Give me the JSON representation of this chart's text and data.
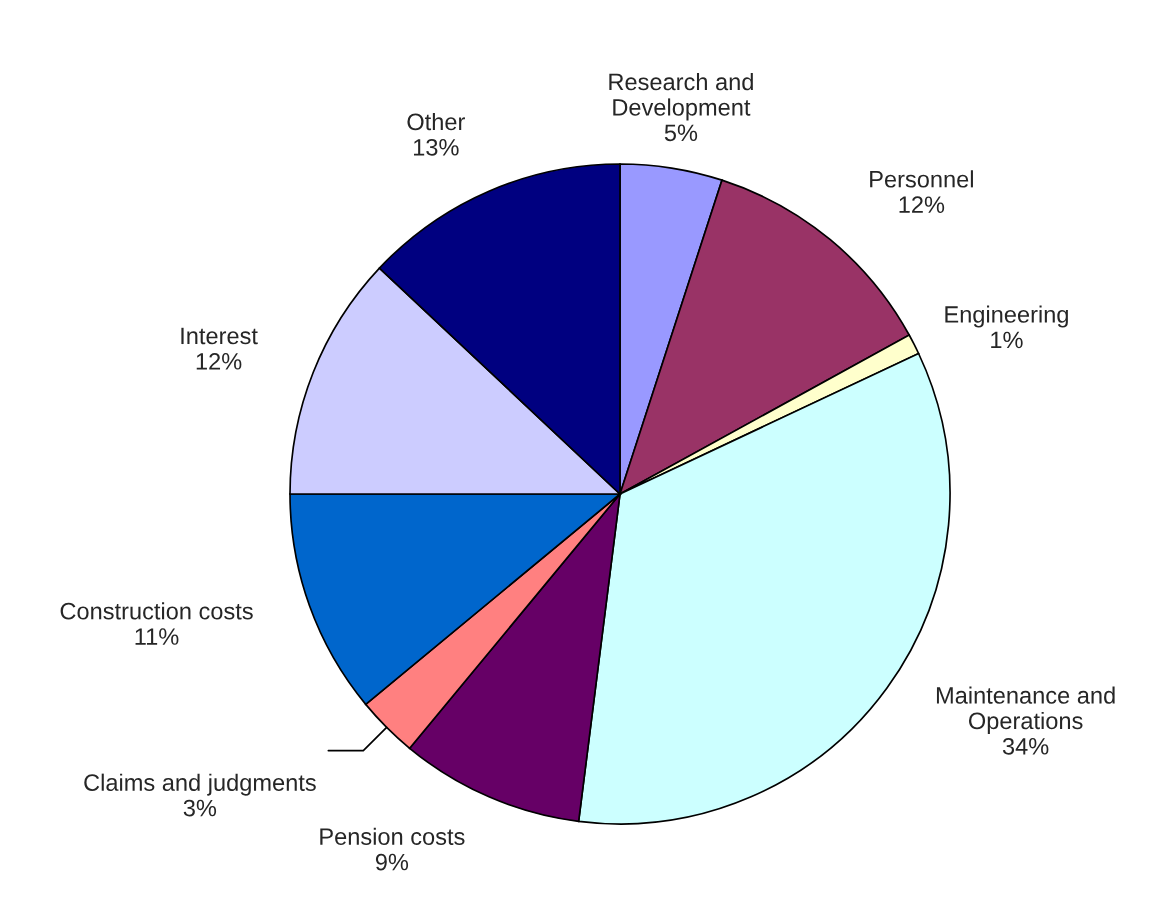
{
  "chart_data": {
    "type": "pie",
    "categories": [
      "Research and\nDevelopment",
      "Personnel",
      "Engineering",
      "Maintenance and\nOperations",
      "Pension costs",
      "Claims and judgments",
      "Construction costs",
      "Interest",
      "Other"
    ],
    "values": [
      5,
      12,
      1,
      34,
      9,
      3,
      11,
      12,
      13
    ],
    "value_labels": [
      "5%",
      "12%",
      "1%",
      "34%",
      "9%",
      "3%",
      "11%",
      "12%",
      "13%"
    ],
    "colors": [
      "#9999ff",
      "#993366",
      "#ffffcc",
      "#ccffff",
      "#660066",
      "#ff8080",
      "#0066cc",
      "#ccccff",
      "#000080"
    ],
    "legend": false
  }
}
